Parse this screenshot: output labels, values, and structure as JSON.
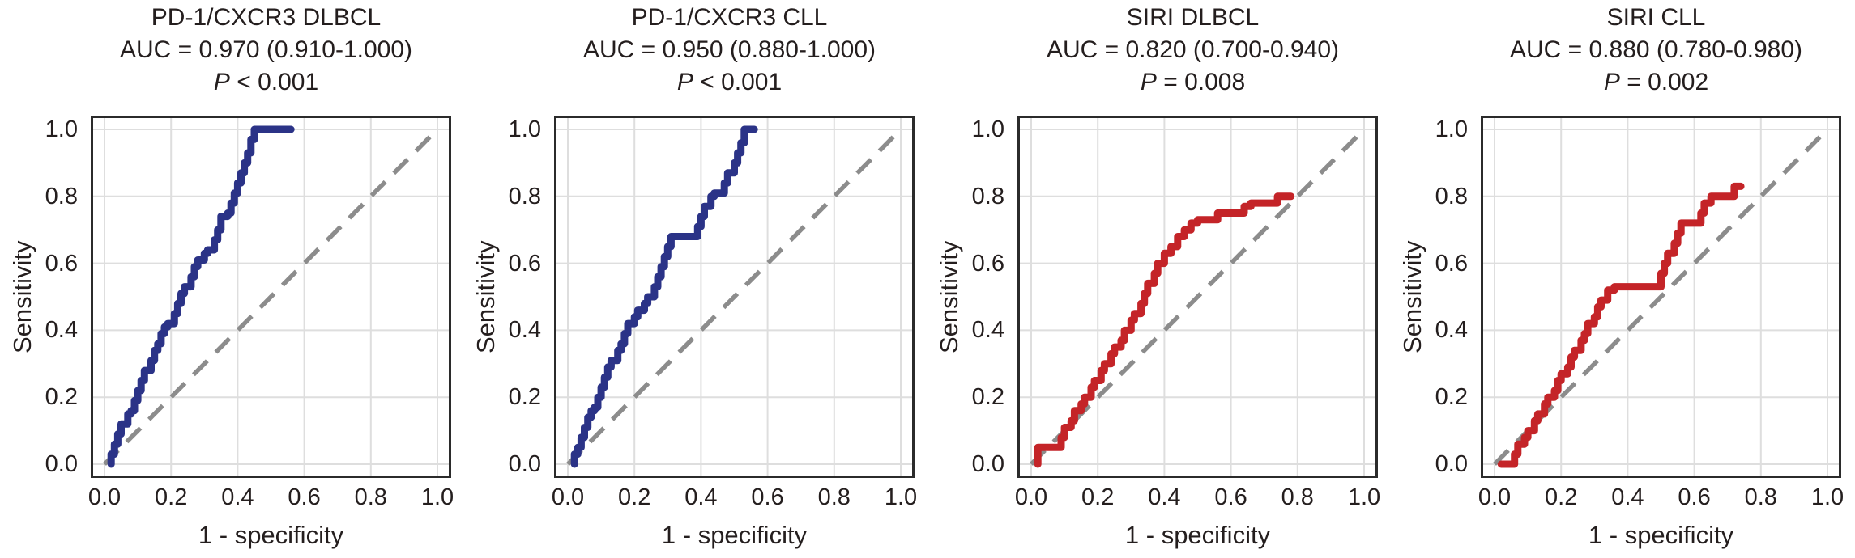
{
  "style": {
    "background": "#ffffff",
    "text_dark": "#241e1e",
    "frame_dark": "#2b2b2b",
    "grid_gray": "#dedede",
    "reference_gray": "#8c8c8c",
    "curve_blue": "#2b3387",
    "curve_red": "#c42428"
  },
  "chart_data": [
    {
      "type": "line",
      "subtype": "roc-curve",
      "title": "PD-1/CXCR3 DLBCL",
      "auc_line": "AUC = 0.970 (0.910-1.000)",
      "p_italic": "P",
      "p_rest": " < 0.001",
      "xlabel": "1 - specificity",
      "ylabel": "Sensitivity",
      "xlim": [
        0,
        1
      ],
      "ylim": [
        0,
        1
      ],
      "x_ticks": [
        "0.0",
        "0.2",
        "0.4",
        "0.6",
        "0.8",
        "1.0"
      ],
      "y_ticks": [
        "1.0",
        "0.8",
        "0.6",
        "0.4",
        "0.2",
        "0.0"
      ],
      "grid": true,
      "reference_line": {
        "style": "dashed",
        "from": [
          0,
          0
        ],
        "to": [
          1,
          1
        ],
        "color": "#8c8c8c"
      },
      "series": [
        {
          "name": "ROC curve",
          "color": "#2b3387",
          "points": [
            [
              0.02,
              0.0
            ],
            [
              0.03,
              0.03
            ],
            [
              0.04,
              0.06
            ],
            [
              0.05,
              0.09
            ],
            [
              0.07,
              0.12
            ],
            [
              0.08,
              0.15
            ],
            [
              0.09,
              0.16
            ],
            [
              0.1,
              0.19
            ],
            [
              0.11,
              0.22
            ],
            [
              0.12,
              0.25
            ],
            [
              0.14,
              0.28
            ],
            [
              0.15,
              0.31
            ],
            [
              0.16,
              0.34
            ],
            [
              0.17,
              0.36
            ],
            [
              0.18,
              0.39
            ],
            [
              0.19,
              0.41
            ],
            [
              0.21,
              0.42
            ],
            [
              0.22,
              0.45
            ],
            [
              0.23,
              0.48
            ],
            [
              0.24,
              0.51
            ],
            [
              0.26,
              0.53
            ],
            [
              0.27,
              0.56
            ],
            [
              0.28,
              0.59
            ],
            [
              0.3,
              0.61
            ],
            [
              0.31,
              0.63
            ],
            [
              0.33,
              0.64
            ],
            [
              0.34,
              0.67
            ],
            [
              0.35,
              0.7
            ],
            [
              0.35,
              0.73
            ],
            [
              0.37,
              0.74
            ],
            [
              0.38,
              0.75
            ],
            [
              0.39,
              0.78
            ],
            [
              0.4,
              0.81
            ],
            [
              0.41,
              0.84
            ],
            [
              0.42,
              0.87
            ],
            [
              0.43,
              0.9
            ],
            [
              0.44,
              0.93
            ],
            [
              0.45,
              0.97
            ],
            [
              0.46,
              1.0
            ],
            [
              0.56,
              1.0
            ]
          ]
        }
      ]
    },
    {
      "type": "line",
      "subtype": "roc-curve",
      "title": "PD-1/CXCR3 CLL",
      "auc_line": "AUC = 0.950 (0.880-1.000)",
      "p_italic": "P",
      "p_rest": " < 0.001",
      "xlabel": "1 - specificity",
      "ylabel": "Sensitivity",
      "xlim": [
        0,
        1
      ],
      "ylim": [
        0,
        1
      ],
      "x_ticks": [
        "0.0",
        "0.2",
        "0.4",
        "0.6",
        "0.8",
        "1.0"
      ],
      "y_ticks": [
        "1.0",
        "0.8",
        "0.6",
        "0.4",
        "0.2",
        "0.0"
      ],
      "grid": true,
      "reference_line": {
        "style": "dashed",
        "from": [
          0,
          0
        ],
        "to": [
          1,
          1
        ],
        "color": "#8c8c8c"
      },
      "series": [
        {
          "name": "ROC curve",
          "color": "#2b3387",
          "points": [
            [
              0.02,
              0.0
            ],
            [
              0.03,
              0.03
            ],
            [
              0.04,
              0.05
            ],
            [
              0.05,
              0.08
            ],
            [
              0.06,
              0.11
            ],
            [
              0.07,
              0.14
            ],
            [
              0.08,
              0.16
            ],
            [
              0.09,
              0.17
            ],
            [
              0.1,
              0.2
            ],
            [
              0.11,
              0.23
            ],
            [
              0.12,
              0.26
            ],
            [
              0.13,
              0.29
            ],
            [
              0.15,
              0.31
            ],
            [
              0.16,
              0.34
            ],
            [
              0.17,
              0.36
            ],
            [
              0.18,
              0.39
            ],
            [
              0.2,
              0.42
            ],
            [
              0.21,
              0.44
            ],
            [
              0.23,
              0.46
            ],
            [
              0.24,
              0.48
            ],
            [
              0.26,
              0.5
            ],
            [
              0.27,
              0.53
            ],
            [
              0.28,
              0.56
            ],
            [
              0.29,
              0.59
            ],
            [
              0.3,
              0.62
            ],
            [
              0.31,
              0.65
            ],
            [
              0.32,
              0.68
            ],
            [
              0.39,
              0.68
            ],
            [
              0.4,
              0.71
            ],
            [
              0.41,
              0.74
            ],
            [
              0.43,
              0.77
            ],
            [
              0.44,
              0.8
            ],
            [
              0.47,
              0.81
            ],
            [
              0.48,
              0.84
            ],
            [
              0.5,
              0.87
            ],
            [
              0.51,
              0.9
            ],
            [
              0.52,
              0.93
            ],
            [
              0.53,
              0.96
            ],
            [
              0.54,
              1.0
            ],
            [
              0.56,
              1.0
            ]
          ]
        }
      ]
    },
    {
      "type": "line",
      "subtype": "roc-curve",
      "title": "SIRI DLBCL",
      "auc_line": "AUC = 0.820 (0.700-0.940)",
      "p_italic": "P",
      "p_rest": " = 0.008",
      "xlabel": "1 - specificity",
      "ylabel": "Sensitivity",
      "xlim": [
        0,
        1
      ],
      "ylim": [
        0,
        1
      ],
      "x_ticks": [
        "0.0",
        "0.2",
        "0.4",
        "0.6",
        "0.8",
        "1.0"
      ],
      "y_ticks": [
        "1.0",
        "0.8",
        "0.6",
        "0.4",
        "0.2",
        "0.0"
      ],
      "grid": true,
      "reference_line": {
        "style": "dashed",
        "from": [
          0,
          0
        ],
        "to": [
          1,
          1
        ],
        "color": "#8c8c8c"
      },
      "series": [
        {
          "name": "ROC curve",
          "color": "#c42428",
          "points": [
            [
              0.02,
              0.0
            ],
            [
              0.03,
              0.05
            ],
            [
              0.09,
              0.05
            ],
            [
              0.1,
              0.08
            ],
            [
              0.12,
              0.11
            ],
            [
              0.13,
              0.13
            ],
            [
              0.15,
              0.16
            ],
            [
              0.16,
              0.18
            ],
            [
              0.18,
              0.2
            ],
            [
              0.19,
              0.23
            ],
            [
              0.21,
              0.25
            ],
            [
              0.22,
              0.28
            ],
            [
              0.24,
              0.3
            ],
            [
              0.25,
              0.33
            ],
            [
              0.27,
              0.35
            ],
            [
              0.28,
              0.37
            ],
            [
              0.3,
              0.4
            ],
            [
              0.31,
              0.43
            ],
            [
              0.33,
              0.45
            ],
            [
              0.34,
              0.48
            ],
            [
              0.35,
              0.51
            ],
            [
              0.37,
              0.54
            ],
            [
              0.38,
              0.57
            ],
            [
              0.4,
              0.6
            ],
            [
              0.42,
              0.63
            ],
            [
              0.44,
              0.65
            ],
            [
              0.46,
              0.68
            ],
            [
              0.48,
              0.7
            ],
            [
              0.5,
              0.72
            ],
            [
              0.56,
              0.73
            ],
            [
              0.58,
              0.75
            ],
            [
              0.64,
              0.75
            ],
            [
              0.66,
              0.77
            ],
            [
              0.68,
              0.78
            ],
            [
              0.74,
              0.78
            ],
            [
              0.76,
              0.8
            ],
            [
              0.78,
              0.8
            ]
          ]
        }
      ]
    },
    {
      "type": "line",
      "subtype": "roc-curve",
      "title": "SIRI CLL",
      "auc_line": "AUC = 0.880 (0.780-0.980)",
      "p_italic": "P",
      "p_rest": " = 0.002",
      "xlabel": "1 - specificity",
      "ylabel": "Sensitivity",
      "xlim": [
        0,
        1
      ],
      "ylim": [
        0,
        1
      ],
      "x_ticks": [
        "0.0",
        "0.2",
        "0.4",
        "0.6",
        "0.8",
        "1.0"
      ],
      "y_ticks": [
        "1.0",
        "0.8",
        "0.6",
        "0.4",
        "0.2",
        "0.0"
      ],
      "grid": true,
      "reference_line": {
        "style": "dashed",
        "from": [
          0,
          0
        ],
        "to": [
          1,
          1
        ],
        "color": "#8c8c8c"
      },
      "series": [
        {
          "name": "ROC curve",
          "color": "#c42428",
          "points": [
            [
              0.02,
              0.0
            ],
            [
              0.06,
              0.0
            ],
            [
              0.07,
              0.03
            ],
            [
              0.09,
              0.06
            ],
            [
              0.1,
              0.08
            ],
            [
              0.12,
              0.1
            ],
            [
              0.13,
              0.13
            ],
            [
              0.15,
              0.15
            ],
            [
              0.16,
              0.18
            ],
            [
              0.18,
              0.2
            ],
            [
              0.19,
              0.22
            ],
            [
              0.2,
              0.25
            ],
            [
              0.22,
              0.27
            ],
            [
              0.23,
              0.29
            ],
            [
              0.24,
              0.32
            ],
            [
              0.26,
              0.34
            ],
            [
              0.27,
              0.37
            ],
            [
              0.28,
              0.39
            ],
            [
              0.3,
              0.42
            ],
            [
              0.31,
              0.44
            ],
            [
              0.32,
              0.47
            ],
            [
              0.34,
              0.49
            ],
            [
              0.36,
              0.52
            ],
            [
              0.38,
              0.53
            ],
            [
              0.5,
              0.53
            ],
            [
              0.51,
              0.57
            ],
            [
              0.52,
              0.6
            ],
            [
              0.54,
              0.63
            ],
            [
              0.55,
              0.66
            ],
            [
              0.56,
              0.69
            ],
            [
              0.58,
              0.72
            ],
            [
              0.62,
              0.72
            ],
            [
              0.63,
              0.75
            ],
            [
              0.65,
              0.78
            ],
            [
              0.66,
              0.8
            ],
            [
              0.72,
              0.8
            ],
            [
              0.74,
              0.83
            ]
          ]
        }
      ]
    }
  ]
}
